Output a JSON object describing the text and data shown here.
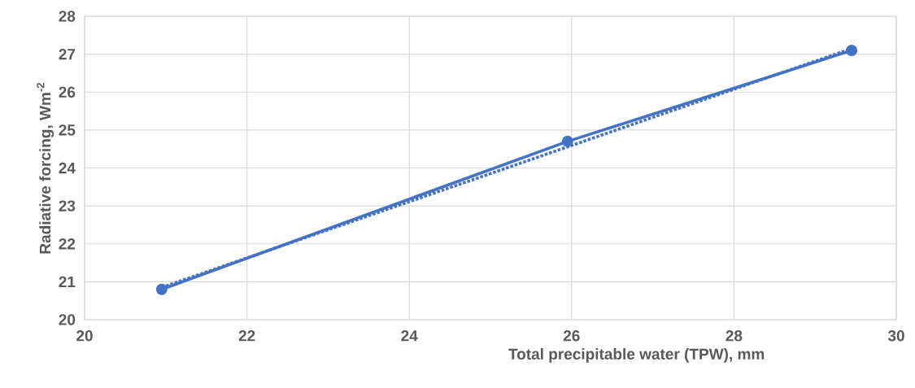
{
  "chart_data": {
    "type": "line",
    "xlabel": "Total precipitable water (TPW), mm",
    "ylabel": "Radiative forcing, Wm$^{-2}$",
    "series": [
      {
        "color": "#4472c4",
        "marker": "circle",
        "line_style": "solid",
        "x": [
          20.95,
          25.95,
          29.45
        ],
        "values": [
          20.8,
          24.7,
          27.1
        ]
      },
      {
        "type": "line",
        "color": "#4472c4",
        "marker": "none",
        "line_style": "dotted",
        "x": [
          20.95,
          29.45
        ],
        "values": [
          20.85,
          27.15
        ]
      }
    ],
    "xlim": [
      20,
      30
    ],
    "xticks": [
      20,
      22,
      24,
      26,
      28,
      30
    ],
    "ylim": [
      20,
      28
    ],
    "yticks": [
      20,
      21,
      22,
      23,
      24,
      25,
      26,
      27,
      28
    ],
    "grid": true
  }
}
